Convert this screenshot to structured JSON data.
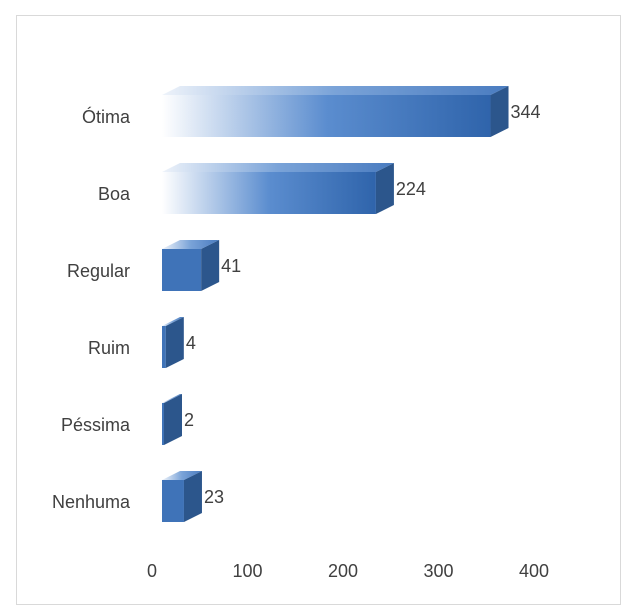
{
  "chart_data": {
    "type": "bar",
    "orientation": "horizontal",
    "style": "3d",
    "categories": [
      "Ótima",
      "Boa",
      "Regular",
      "Ruim",
      "Péssima",
      "Nenhuma"
    ],
    "values": [
      344,
      224,
      41,
      4,
      2,
      23
    ],
    "data_labels": [
      "344",
      "224",
      "41",
      "4",
      "2",
      "23"
    ],
    "x_ticks": [
      "0",
      "100",
      "200",
      "300",
      "400"
    ],
    "xlim": [
      0,
      400
    ],
    "title": "",
    "xlabel": "",
    "ylabel": "",
    "grid": false,
    "legend": "none",
    "colors": {
      "bar_dark": "#3f73b8",
      "bar_light": "#ffffff",
      "bar_top": "#6b97d1",
      "bar_side": "#2c568c",
      "text": "#404040",
      "border": "#d9d9d9"
    }
  }
}
